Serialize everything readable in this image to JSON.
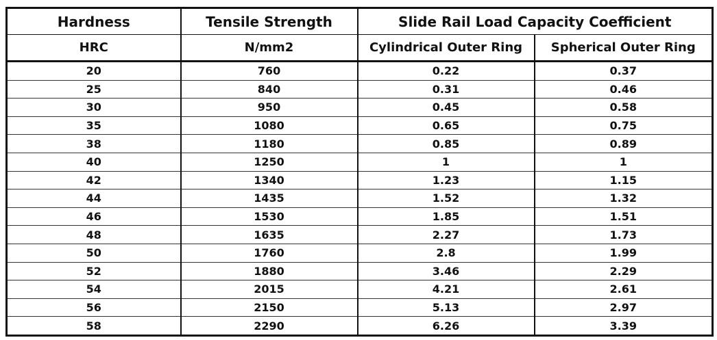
{
  "table": {
    "header_top": [
      "Hardness",
      "Tensile Strength",
      "Slide Rail Load Capacity Coefficient"
    ],
    "header_sub": [
      "HRC",
      "N/mm2",
      "Cylindrical Outer Ring",
      "Spherical Outer Ring"
    ],
    "rows": [
      [
        "20",
        "760",
        "0.22",
        "0.37"
      ],
      [
        "25",
        "840",
        "0.31",
        "0.46"
      ],
      [
        "30",
        "950",
        "0.45",
        "0.58"
      ],
      [
        "35",
        "1080",
        "0.65",
        "0.75"
      ],
      [
        "38",
        "1180",
        "0.85",
        "0.89"
      ],
      [
        "40",
        "1250",
        "1",
        "1"
      ],
      [
        "42",
        "1340",
        "1.23",
        "1.15"
      ],
      [
        "44",
        "1435",
        "1.52",
        "1.32"
      ],
      [
        "46",
        "1530",
        "1.85",
        "1.51"
      ],
      [
        "48",
        "1635",
        "2.27",
        "1.73"
      ],
      [
        "50",
        "1760",
        "2.8",
        "1.99"
      ],
      [
        "52",
        "1880",
        "3.46",
        "2.29"
      ],
      [
        "54",
        "2015",
        "4.21",
        "2.61"
      ],
      [
        "56",
        "2150",
        "5.13",
        "2.97"
      ],
      [
        "58",
        "2290",
        "6.26",
        "3.39"
      ]
    ]
  }
}
